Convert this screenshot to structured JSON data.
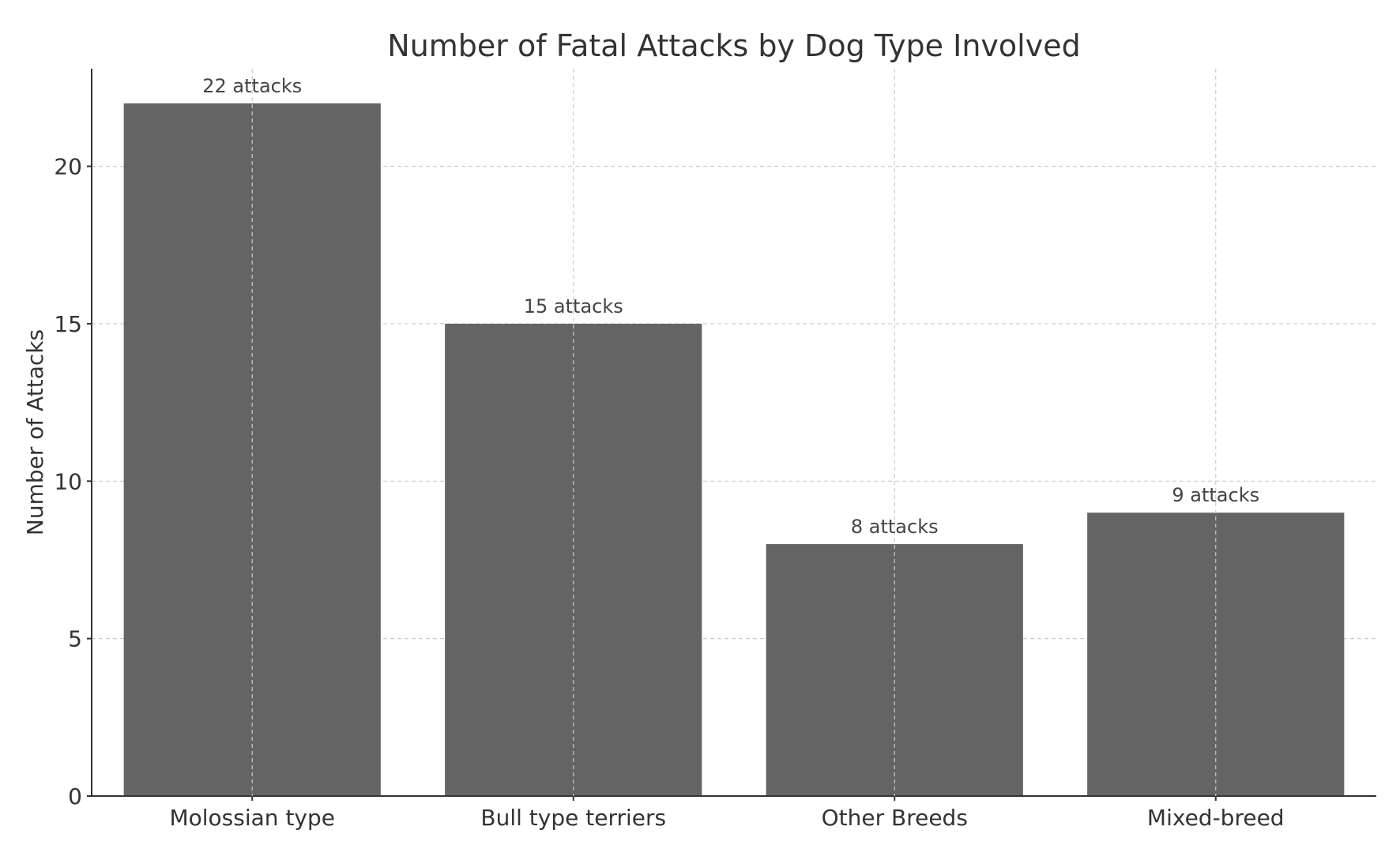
{
  "chart_data": {
    "type": "bar",
    "title": "Number of Fatal Attacks by Dog Type Involved",
    "xlabel": "",
    "ylabel": "Number of Attacks",
    "categories": [
      "Molossian type",
      "Bull type terriers",
      "Other Breeds",
      "Mixed-breed"
    ],
    "values": [
      22,
      15,
      8,
      9
    ],
    "data_labels": [
      "22 attacks",
      "15 attacks",
      "8 attacks",
      "9 attacks"
    ],
    "ylim": [
      0,
      23.1
    ],
    "yticks": [
      0,
      5,
      10,
      15,
      20
    ],
    "ytick_labels": [
      "0",
      "5",
      "10",
      "15",
      "20"
    ],
    "grid": true,
    "legend": "none",
    "colors": {
      "bar": "#646464",
      "grid": "#cccccc",
      "axis": "#333333",
      "text": "#333333"
    }
  }
}
